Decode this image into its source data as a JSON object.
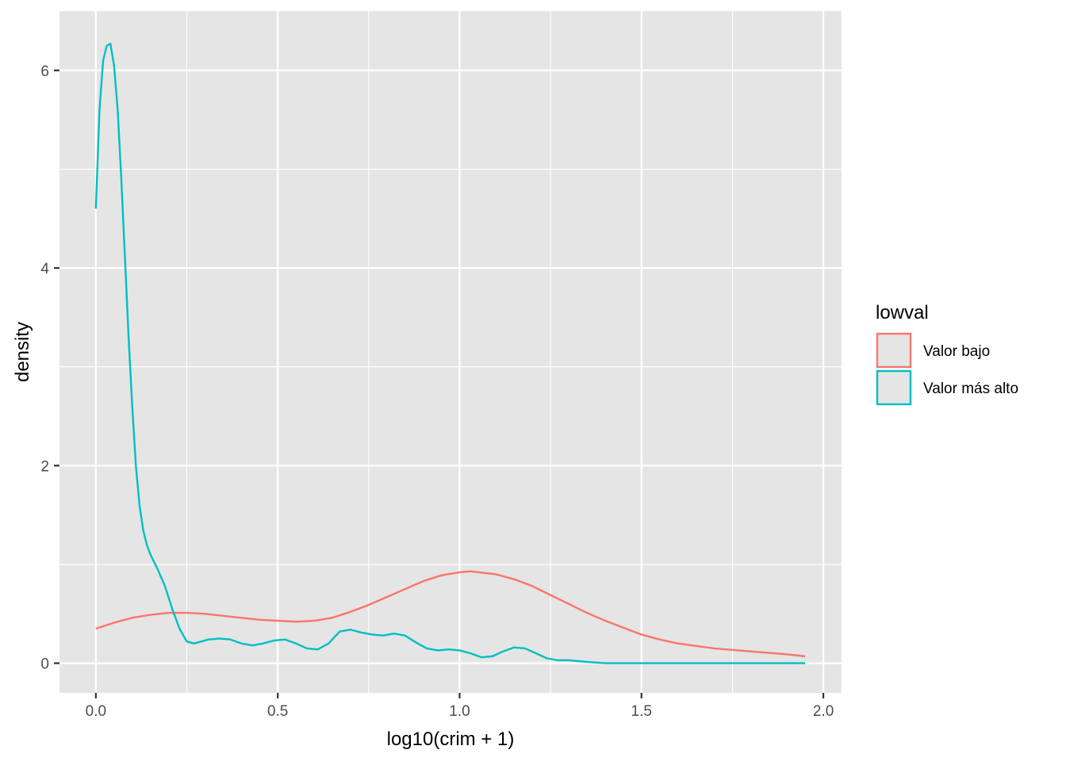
{
  "chart_data": {
    "type": "line",
    "title": "",
    "xlabel": "log10(crim + 1)",
    "ylabel": "density",
    "xlim": [
      -0.1,
      2.05
    ],
    "ylim": [
      -0.3,
      6.6
    ],
    "x_ticks": [
      0.0,
      0.5,
      1.0,
      1.5,
      2.0
    ],
    "x_tick_labels": [
      "0.0",
      "0.5",
      "1.0",
      "1.5",
      "2.0"
    ],
    "y_ticks": [
      0,
      2,
      4,
      6
    ],
    "y_tick_labels": [
      "0",
      "2",
      "4",
      "6"
    ],
    "grid": true,
    "background": "#e5e5e5",
    "legend": {
      "title": "lowval",
      "position": "right",
      "entries": [
        "Valor bajo",
        "Valor más alto"
      ]
    },
    "series": [
      {
        "name": "Valor bajo",
        "color": "#f8766d",
        "x": [
          0.0,
          0.05,
          0.1,
          0.15,
          0.2,
          0.25,
          0.3,
          0.35,
          0.4,
          0.45,
          0.5,
          0.55,
          0.6,
          0.65,
          0.7,
          0.75,
          0.8,
          0.85,
          0.9,
          0.95,
          1.0,
          1.03,
          1.1,
          1.15,
          1.2,
          1.25,
          1.3,
          1.35,
          1.4,
          1.45,
          1.5,
          1.55,
          1.6,
          1.7,
          1.8,
          1.9,
          1.95
        ],
        "y": [
          0.35,
          0.41,
          0.46,
          0.49,
          0.51,
          0.51,
          0.5,
          0.48,
          0.46,
          0.44,
          0.43,
          0.42,
          0.43,
          0.46,
          0.52,
          0.59,
          0.67,
          0.75,
          0.83,
          0.89,
          0.92,
          0.93,
          0.9,
          0.85,
          0.78,
          0.69,
          0.6,
          0.51,
          0.43,
          0.36,
          0.29,
          0.24,
          0.2,
          0.15,
          0.12,
          0.09,
          0.07
        ]
      },
      {
        "name": "Valor más alto",
        "color": "#00bfc4",
        "x": [
          0.0,
          0.01,
          0.02,
          0.03,
          0.04,
          0.05,
          0.06,
          0.07,
          0.08,
          0.09,
          0.1,
          0.11,
          0.12,
          0.13,
          0.14,
          0.15,
          0.17,
          0.19,
          0.21,
          0.23,
          0.25,
          0.27,
          0.29,
          0.31,
          0.34,
          0.37,
          0.4,
          0.43,
          0.46,
          0.49,
          0.52,
          0.55,
          0.58,
          0.61,
          0.64,
          0.67,
          0.7,
          0.73,
          0.76,
          0.79,
          0.82,
          0.85,
          0.88,
          0.91,
          0.94,
          0.97,
          1.0,
          1.03,
          1.06,
          1.09,
          1.12,
          1.15,
          1.18,
          1.21,
          1.24,
          1.27,
          1.3,
          1.33,
          1.36,
          1.4,
          1.5,
          1.6,
          1.7,
          1.8,
          1.9,
          1.95
        ],
        "y": [
          4.6,
          5.6,
          6.1,
          6.25,
          6.27,
          6.05,
          5.6,
          4.9,
          4.1,
          3.3,
          2.6,
          2.0,
          1.6,
          1.35,
          1.2,
          1.1,
          0.95,
          0.78,
          0.55,
          0.35,
          0.22,
          0.2,
          0.22,
          0.24,
          0.25,
          0.24,
          0.2,
          0.18,
          0.2,
          0.23,
          0.24,
          0.2,
          0.15,
          0.14,
          0.2,
          0.32,
          0.34,
          0.31,
          0.29,
          0.28,
          0.3,
          0.28,
          0.21,
          0.15,
          0.13,
          0.14,
          0.13,
          0.1,
          0.06,
          0.07,
          0.12,
          0.16,
          0.15,
          0.1,
          0.05,
          0.03,
          0.03,
          0.02,
          0.01,
          0.0,
          0.0,
          0.0,
          0.0,
          0.0,
          0.0,
          0.0
        ]
      }
    ]
  }
}
